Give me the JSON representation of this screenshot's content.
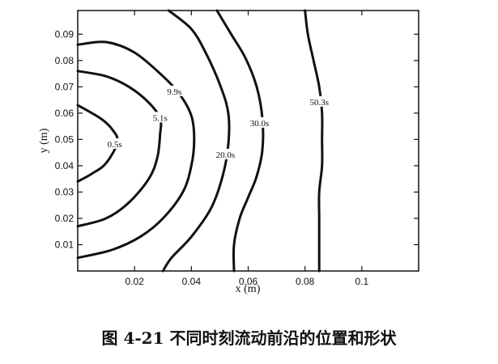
{
  "chart_data": {
    "type": "contour",
    "xlabel": "x (m)",
    "ylabel": "y (m)",
    "xlim": [
      0.0,
      0.12
    ],
    "ylim": [
      0.0,
      0.099
    ],
    "x_ticks": [
      0.02,
      0.04,
      0.06,
      0.08,
      0.1
    ],
    "x_tick_labels": [
      "0.02",
      "0.04",
      "0.06",
      "0.08",
      "0.1"
    ],
    "y_ticks": [
      0.01,
      0.02,
      0.03,
      0.04,
      0.05,
      0.06,
      0.07,
      0.08,
      0.09
    ],
    "y_tick_labels": [
      "0.01",
      "0.02",
      "0.03",
      "0.04",
      "0.05",
      "0.06",
      "0.07",
      "0.08",
      "0.09"
    ],
    "contours": [
      {
        "label": "0.5s",
        "label_at": [
          0.013,
          0.048
        ],
        "points": [
          [
            0.0,
            0.063
          ],
          [
            0.008,
            0.058
          ],
          [
            0.012,
            0.054
          ],
          [
            0.014,
            0.049
          ],
          [
            0.01,
            0.041
          ],
          [
            0.005,
            0.037
          ],
          [
            0.0,
            0.034
          ]
        ]
      },
      {
        "label": "5.1s",
        "label_at": [
          0.029,
          0.058
        ],
        "points": [
          [
            0.0,
            0.076
          ],
          [
            0.01,
            0.074
          ],
          [
            0.018,
            0.07
          ],
          [
            0.025,
            0.064
          ],
          [
            0.029,
            0.058
          ],
          [
            0.029,
            0.052
          ],
          [
            0.028,
            0.043
          ],
          [
            0.025,
            0.035
          ],
          [
            0.018,
            0.026
          ],
          [
            0.01,
            0.02
          ],
          [
            0.0,
            0.017
          ]
        ]
      },
      {
        "label": "9.9s",
        "label_at": [
          0.034,
          0.068
        ],
        "points": [
          [
            0.0,
            0.086
          ],
          [
            0.01,
            0.087
          ],
          [
            0.02,
            0.083
          ],
          [
            0.03,
            0.074
          ],
          [
            0.036,
            0.067
          ],
          [
            0.04,
            0.059
          ],
          [
            0.041,
            0.05
          ],
          [
            0.04,
            0.04
          ],
          [
            0.037,
            0.03
          ],
          [
            0.03,
            0.02
          ],
          [
            0.022,
            0.013
          ],
          [
            0.012,
            0.008
          ],
          [
            0.0,
            0.005
          ]
        ]
      },
      {
        "label": "20.0s",
        "label_at": [
          0.052,
          0.044
        ],
        "points": [
          [
            0.032,
            0.099
          ],
          [
            0.04,
            0.092
          ],
          [
            0.045,
            0.083
          ],
          [
            0.05,
            0.071
          ],
          [
            0.053,
            0.06
          ],
          [
            0.053,
            0.048
          ],
          [
            0.051,
            0.036
          ],
          [
            0.047,
            0.024
          ],
          [
            0.04,
            0.013
          ],
          [
            0.033,
            0.005
          ],
          [
            0.03,
            0.0
          ]
        ]
      },
      {
        "label": "30.0s",
        "label_at": [
          0.064,
          0.056
        ],
        "points": [
          [
            0.049,
            0.099
          ],
          [
            0.054,
            0.09
          ],
          [
            0.059,
            0.081
          ],
          [
            0.063,
            0.07
          ],
          [
            0.065,
            0.058
          ],
          [
            0.065,
            0.046
          ],
          [
            0.063,
            0.036
          ],
          [
            0.06,
            0.028
          ],
          [
            0.057,
            0.02
          ],
          [
            0.055,
            0.01
          ],
          [
            0.055,
            0.0
          ]
        ]
      },
      {
        "label": "50.3s",
        "label_at": [
          0.085,
          0.064
        ],
        "points": [
          [
            0.08,
            0.099
          ],
          [
            0.081,
            0.09
          ],
          [
            0.083,
            0.08
          ],
          [
            0.085,
            0.07
          ],
          [
            0.086,
            0.06
          ],
          [
            0.086,
            0.05
          ],
          [
            0.086,
            0.04
          ],
          [
            0.085,
            0.03
          ],
          [
            0.085,
            0.02
          ],
          [
            0.085,
            0.01
          ],
          [
            0.085,
            0.0
          ]
        ]
      }
    ]
  },
  "caption": "图 4-21  不同时刻流动前沿的位置和形状"
}
